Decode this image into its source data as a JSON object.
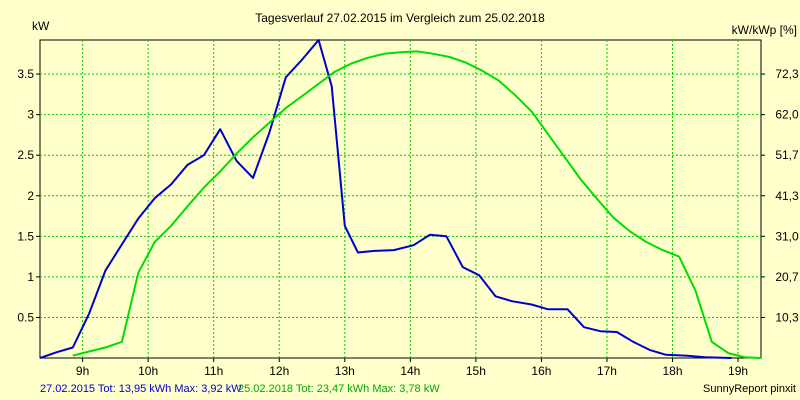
{
  "chart_data": {
    "type": "line",
    "title": "Tagesverlauf 27.02.2015 im Vergleich zum 25.02.2018",
    "ylabel_left": "kW",
    "ylabel_right": "kW/kWp [%]",
    "x_ticks": [
      "9h",
      "10h",
      "11h",
      "12h",
      "13h",
      "14h",
      "15h",
      "16h",
      "17h",
      "18h",
      "19h"
    ],
    "xlim": [
      8.35,
      19.35
    ],
    "y_ticks_left": [
      "0.5",
      "1",
      "1.5",
      "2",
      "2.5",
      "3",
      "3.5"
    ],
    "y_ticks_left_values": [
      0.5,
      1,
      1.5,
      2,
      2.5,
      3,
      3.5
    ],
    "y_ticks_right": [
      "10,3",
      "20,7",
      "31,0",
      "41,3",
      "51,7",
      "62,0",
      "72,3"
    ],
    "ylim": [
      0,
      3.92
    ],
    "grid": true,
    "series": [
      {
        "name": "27.02.2015",
        "color": "#0000cc",
        "points": [
          [
            8.35,
            0.0
          ],
          [
            8.6,
            0.07
          ],
          [
            8.85,
            0.13
          ],
          [
            9.1,
            0.55
          ],
          [
            9.35,
            1.08
          ],
          [
            9.6,
            1.4
          ],
          [
            9.85,
            1.72
          ],
          [
            10.1,
            1.97
          ],
          [
            10.35,
            2.14
          ],
          [
            10.6,
            2.38
          ],
          [
            10.85,
            2.5
          ],
          [
            11.1,
            2.82
          ],
          [
            11.35,
            2.43
          ],
          [
            11.6,
            2.22
          ],
          [
            11.85,
            2.78
          ],
          [
            12.1,
            3.46
          ],
          [
            12.35,
            3.68
          ],
          [
            12.6,
            3.92
          ],
          [
            12.8,
            3.35
          ],
          [
            13.0,
            1.63
          ],
          [
            13.2,
            1.3
          ],
          [
            13.45,
            1.32
          ],
          [
            13.75,
            1.33
          ],
          [
            14.05,
            1.39
          ],
          [
            14.3,
            1.52
          ],
          [
            14.55,
            1.5
          ],
          [
            14.8,
            1.12
          ],
          [
            15.05,
            1.02
          ],
          [
            15.3,
            0.76
          ],
          [
            15.55,
            0.7
          ],
          [
            15.85,
            0.66
          ],
          [
            16.1,
            0.6
          ],
          [
            16.4,
            0.6
          ],
          [
            16.65,
            0.38
          ],
          [
            16.9,
            0.33
          ],
          [
            17.15,
            0.32
          ],
          [
            17.4,
            0.2
          ],
          [
            17.65,
            0.1
          ],
          [
            17.9,
            0.04
          ],
          [
            18.2,
            0.03
          ],
          [
            18.5,
            0.01
          ],
          [
            18.9,
            0.0
          ]
        ]
      },
      {
        "name": "25.02.2018",
        "color": "#00dd00",
        "points": [
          [
            8.85,
            0.03
          ],
          [
            9.1,
            0.08
          ],
          [
            9.35,
            0.13
          ],
          [
            9.6,
            0.2
          ],
          [
            9.85,
            1.05
          ],
          [
            10.1,
            1.43
          ],
          [
            10.35,
            1.63
          ],
          [
            10.6,
            1.87
          ],
          [
            10.85,
            2.1
          ],
          [
            11.1,
            2.3
          ],
          [
            11.35,
            2.52
          ],
          [
            11.6,
            2.72
          ],
          [
            11.85,
            2.9
          ],
          [
            12.1,
            3.08
          ],
          [
            12.35,
            3.23
          ],
          [
            12.6,
            3.38
          ],
          [
            12.85,
            3.53
          ],
          [
            13.1,
            3.63
          ],
          [
            13.35,
            3.7
          ],
          [
            13.6,
            3.75
          ],
          [
            13.85,
            3.77
          ],
          [
            14.1,
            3.78
          ],
          [
            14.35,
            3.75
          ],
          [
            14.6,
            3.71
          ],
          [
            14.85,
            3.64
          ],
          [
            15.1,
            3.54
          ],
          [
            15.35,
            3.42
          ],
          [
            15.6,
            3.24
          ],
          [
            15.85,
            3.04
          ],
          [
            16.1,
            2.76
          ],
          [
            16.35,
            2.48
          ],
          [
            16.6,
            2.2
          ],
          [
            16.85,
            1.96
          ],
          [
            17.1,
            1.73
          ],
          [
            17.35,
            1.56
          ],
          [
            17.6,
            1.43
          ],
          [
            17.85,
            1.33
          ],
          [
            18.1,
            1.25
          ],
          [
            18.35,
            0.83
          ],
          [
            18.6,
            0.2
          ],
          [
            18.85,
            0.06
          ],
          [
            19.1,
            0.01
          ],
          [
            19.35,
            0.0
          ]
        ]
      }
    ]
  },
  "footer": {
    "series1_prefix": "27.02.2015 Tot: 13,95 kWh Max: 3,92 kW",
    "series2_prefix": "25.02.2018 Tot: 23,47 kWh Max: 3,78 kW",
    "brand": "SunnyReport pinxit"
  }
}
